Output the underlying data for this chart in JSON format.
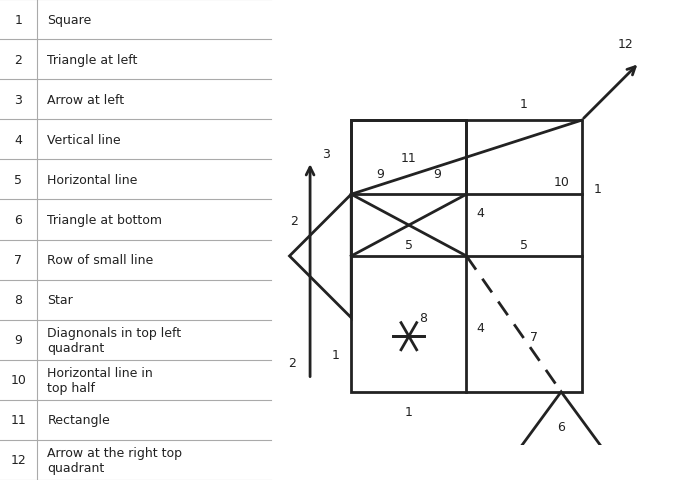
{
  "table_items": [
    [
      1,
      "Square"
    ],
    [
      2,
      "Triangle at left"
    ],
    [
      3,
      "Arrow at left"
    ],
    [
      4,
      "Vertical line"
    ],
    [
      5,
      "Horizontal line"
    ],
    [
      6,
      "Triangle at bottom"
    ],
    [
      7,
      "Row of small line"
    ],
    [
      8,
      "Star"
    ],
    [
      9,
      "Diagnonals in top left\nquadrant"
    ],
    [
      10,
      "Horizontal line in\ntop half"
    ],
    [
      11,
      "Rectangle"
    ],
    [
      12,
      "Arrow at the right top\nquadrant"
    ]
  ],
  "bg_color": "#ffffff",
  "text_color": "#222222",
  "line_color": "#222222",
  "table_line_color": "#aaaaaa",
  "font_size": 9,
  "diagram_font_size": 9
}
